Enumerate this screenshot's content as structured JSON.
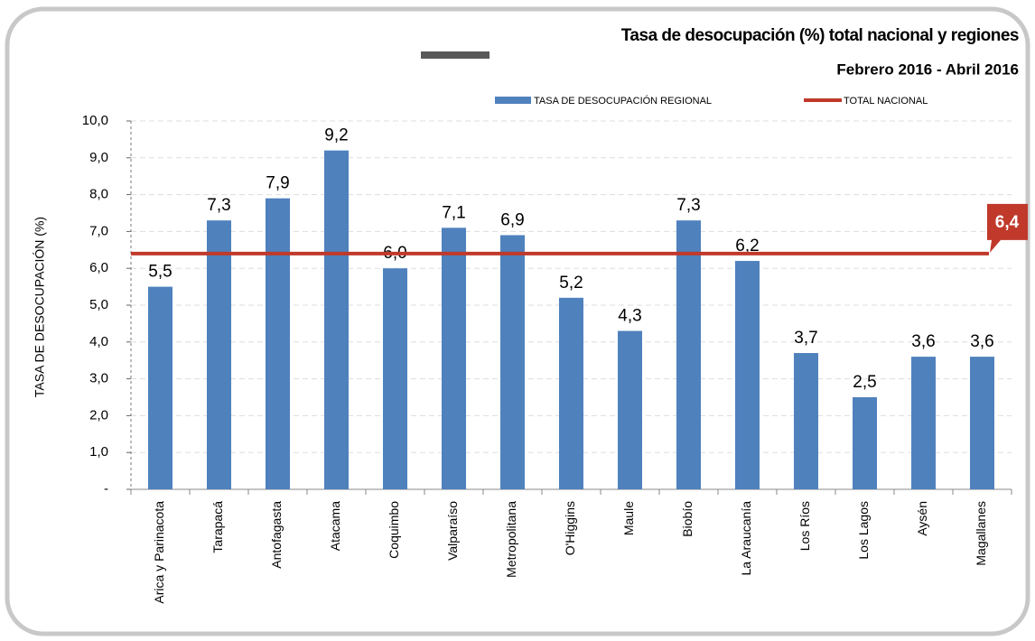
{
  "chart_data": {
    "type": "bar",
    "title": "Tasa de desocupación (%) total nacional y regiones",
    "subtitle": "Febrero  2016 - Abril 2016",
    "ylabel": "TASA DE DESOCUPACIÓN (%)",
    "categories": [
      "Arica y Parinacota",
      "Tarapacá",
      "Antofagasta",
      "Atacama",
      "Coquimbo",
      "Valparaíso",
      "Metropolitana",
      "O'Higgins",
      "Maule",
      "Biobío",
      "La Araucanía",
      "Los Ríos",
      "Los Lagos",
      "Aysén",
      "Magallanes"
    ],
    "series": [
      {
        "name": "TASA DE DESOCUPACIÓN REGIONAL",
        "color": "#4f81bd",
        "values": [
          5.5,
          7.3,
          7.9,
          9.2,
          6.0,
          7.1,
          6.9,
          5.2,
          4.3,
          7.3,
          6.2,
          3.7,
          2.5,
          3.6,
          3.6
        ],
        "value_labels": [
          "5,5",
          "7,3",
          "7,9",
          "9,2",
          "6,0",
          "7,1",
          "6,9",
          "5,2",
          "4,3",
          "7,3",
          "6,2",
          "3,7",
          "2,5",
          "3,6",
          "3,6"
        ]
      }
    ],
    "reference_line": {
      "name": "TOTAL NACIONAL",
      "value": 6.4,
      "label": "6,4",
      "color": "#c0392b"
    },
    "ylim": [
      0,
      10
    ],
    "yticks": [
      {
        "value": 0,
        "label": "-"
      },
      {
        "value": 1,
        "label": "1,0"
      },
      {
        "value": 2,
        "label": "2,0"
      },
      {
        "value": 3,
        "label": "3,0"
      },
      {
        "value": 4,
        "label": "4,0"
      },
      {
        "value": 5,
        "label": "5,0"
      },
      {
        "value": 6,
        "label": "6,0"
      },
      {
        "value": 7,
        "label": "7,0"
      },
      {
        "value": 8,
        "label": "8,0"
      },
      {
        "value": 9,
        "label": "9,0"
      },
      {
        "value": 10,
        "label": "10,0"
      }
    ],
    "grid": true
  }
}
